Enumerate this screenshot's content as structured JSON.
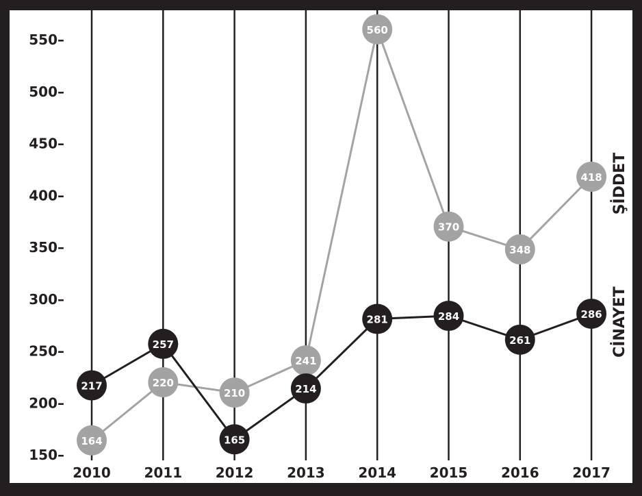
{
  "chart_data": {
    "type": "line",
    "categories": [
      "2010",
      "2011",
      "2012",
      "2013",
      "2014",
      "2015",
      "2016",
      "2017"
    ],
    "series": [
      {
        "name": "ŞİDDET",
        "values": [
          164,
          220,
          210,
          241,
          560,
          370,
          348,
          418
        ],
        "color": "#a3a3a3"
      },
      {
        "name": "CİNAYET",
        "values": [
          217,
          257,
          165,
          214,
          281,
          284,
          261,
          286
        ],
        "color": "#231f20"
      }
    ],
    "y_ticks": [
      "150–",
      "200–",
      "250–",
      "300–",
      "350–",
      "400–",
      "450–",
      "500–",
      "550–"
    ],
    "y_tick_values": [
      150,
      200,
      250,
      300,
      350,
      400,
      450,
      500,
      550
    ],
    "ylim": [
      150,
      560
    ],
    "grid": "vertical",
    "legend": "right, vertical text labels",
    "title": "",
    "xlabel": "",
    "ylabel": ""
  },
  "colors": {
    "frame": "#231f20",
    "background": "#ffffff",
    "light_series": "#a3a3a3",
    "dark_series": "#231f20"
  }
}
